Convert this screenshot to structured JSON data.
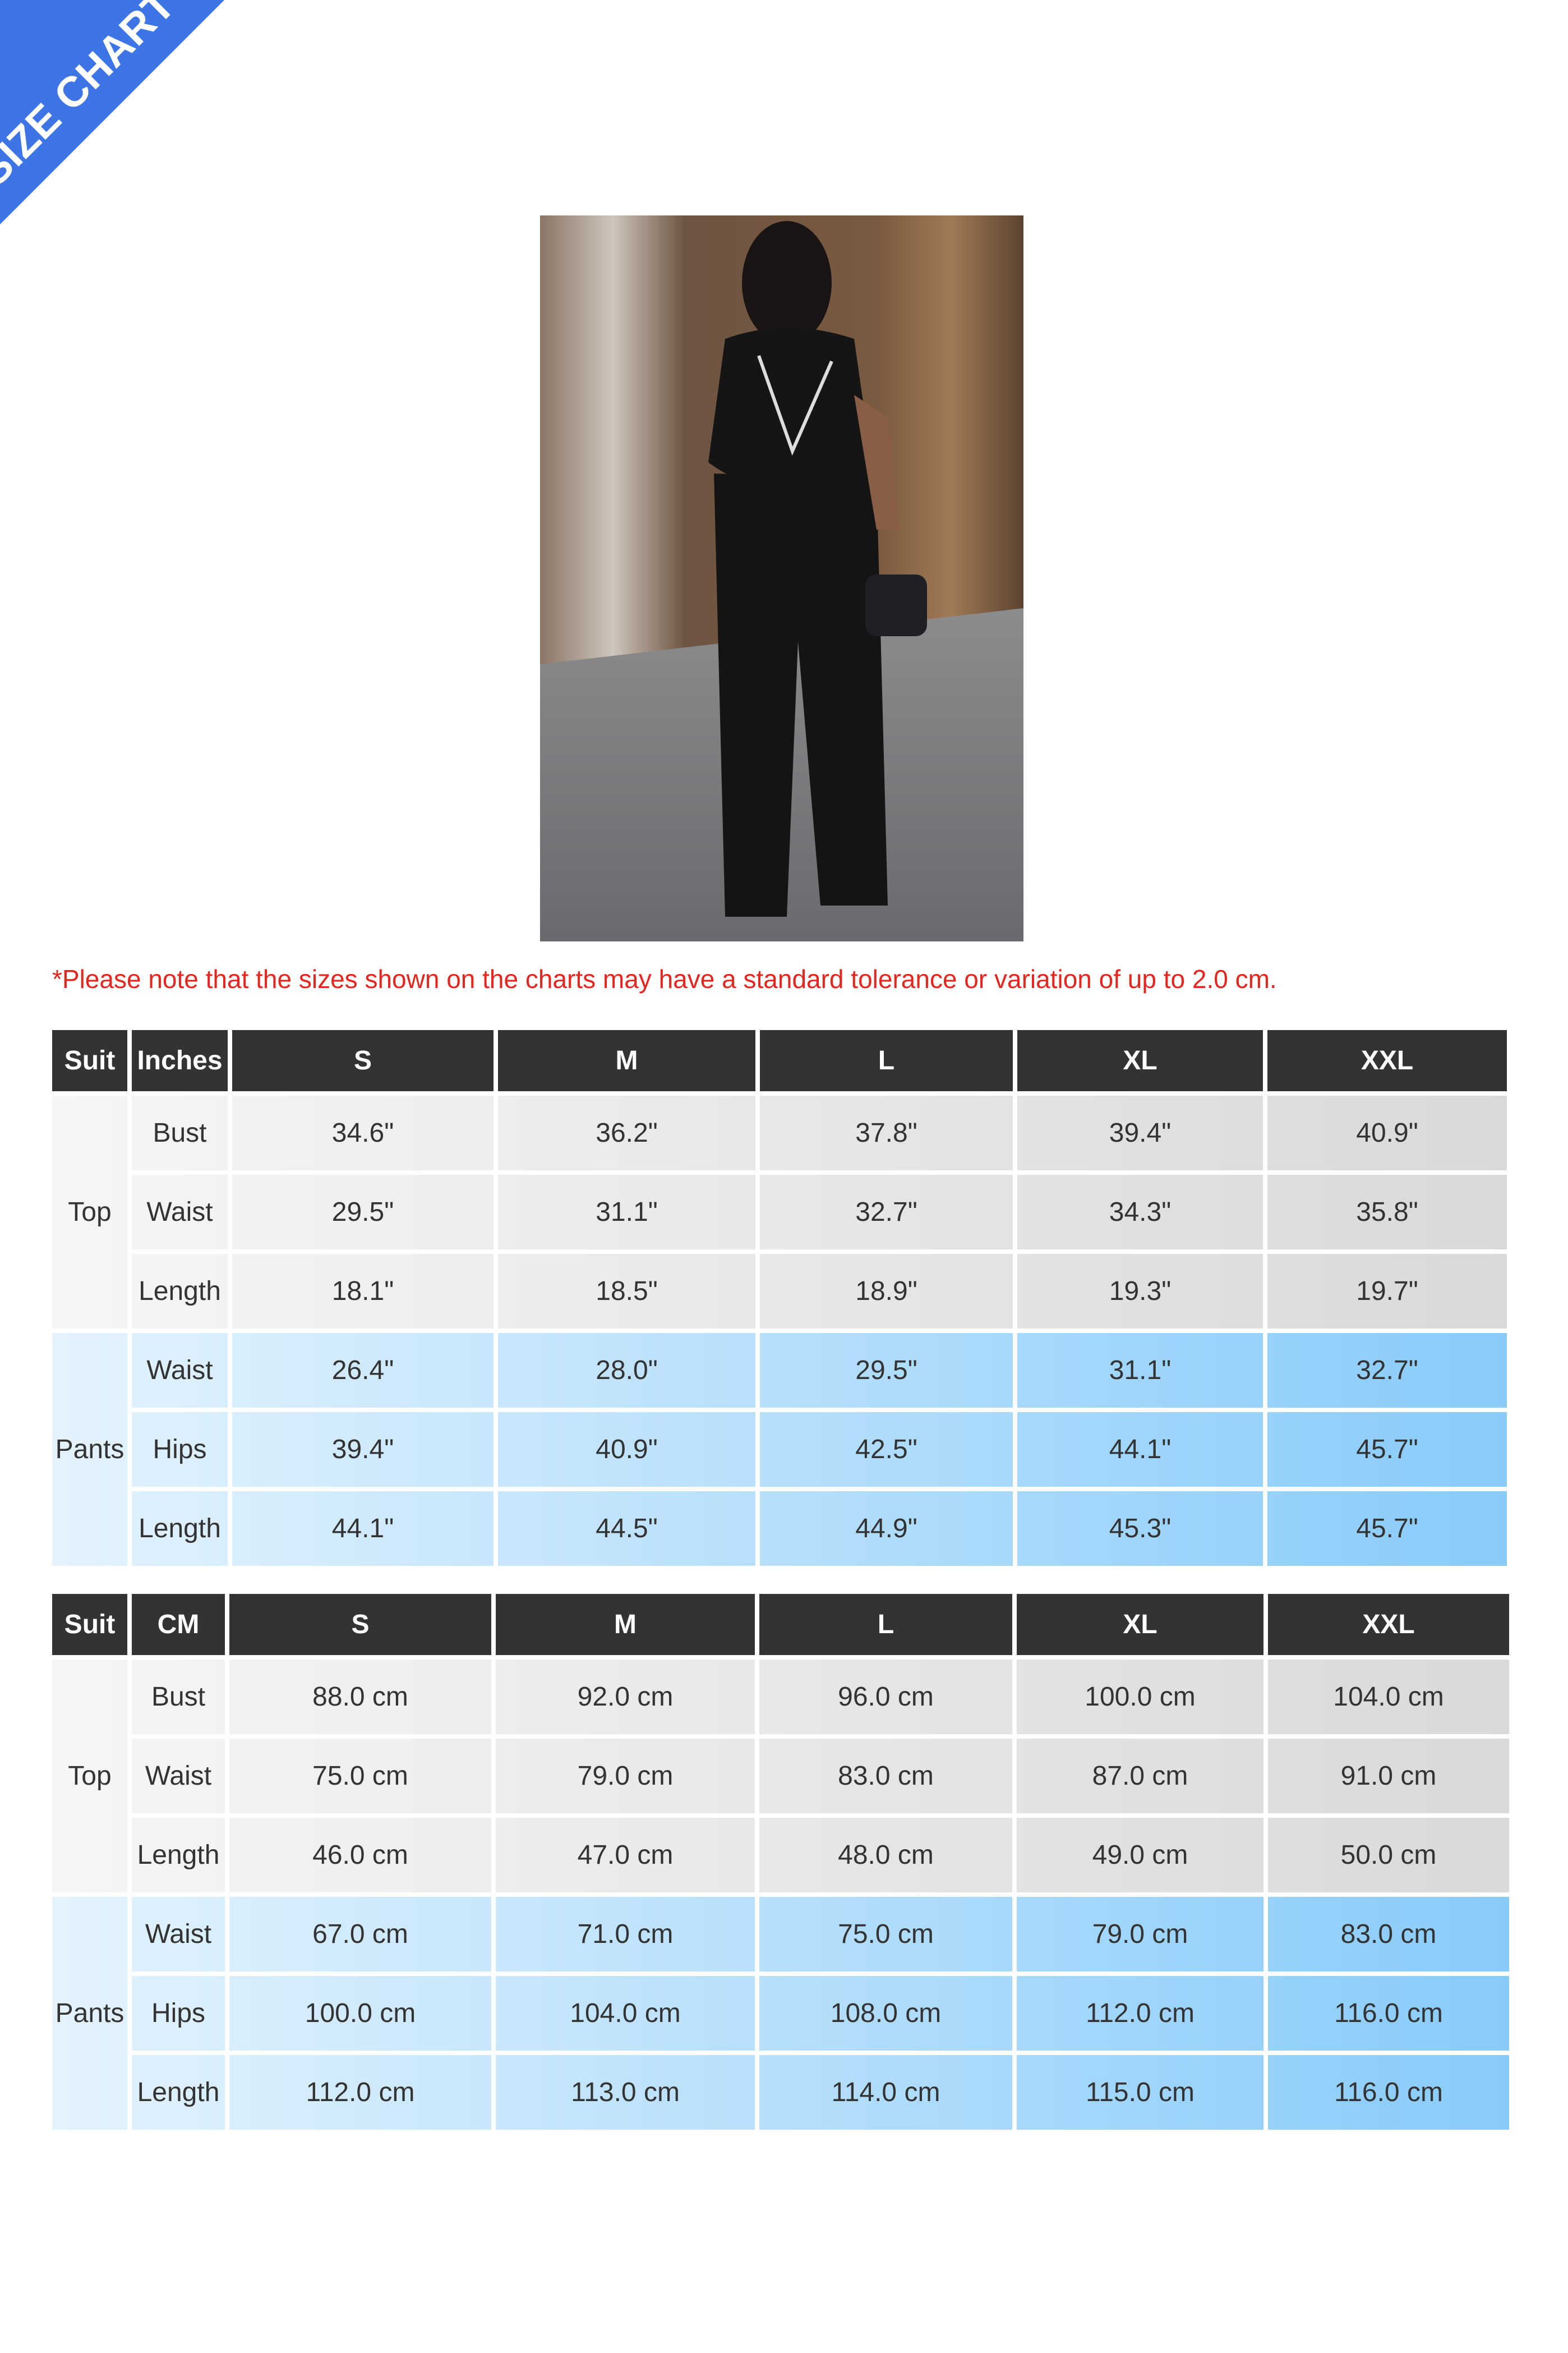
{
  "banner": {
    "text": "SIZE CHART",
    "color": "#3d74e6"
  },
  "note": "*Please note that the sizes shown on the charts may have a standard tolerance or variation of up to 2.0 cm.",
  "colors": {
    "header": "#333333",
    "note": "#e5261f",
    "top_rows": "#e6e6e6",
    "pants_rows": "#a8dbfb"
  },
  "tables": [
    {
      "headers": [
        "Suit",
        "Inches",
        "S",
        "M",
        "L",
        "XL",
        "XXL"
      ],
      "groups": [
        {
          "name": "Top",
          "rows": [
            {
              "label": "Bust",
              "values": [
                "34.6\"",
                "36.2\"",
                "37.8\"",
                "39.4\"",
                "40.9\""
              ]
            },
            {
              "label": "Waist",
              "values": [
                "29.5\"",
                "31.1\"",
                "32.7\"",
                "34.3\"",
                "35.8\""
              ]
            },
            {
              "label": "Length",
              "values": [
                "18.1\"",
                "18.5\"",
                "18.9\"",
                "19.3\"",
                "19.7\""
              ]
            }
          ]
        },
        {
          "name": "Pants",
          "rows": [
            {
              "label": "Waist",
              "values": [
                "26.4\"",
                "28.0\"",
                "29.5\"",
                "31.1\"",
                "32.7\""
              ]
            },
            {
              "label": "Hips",
              "values": [
                "39.4\"",
                "40.9\"",
                "42.5\"",
                "44.1\"",
                "45.7\""
              ]
            },
            {
              "label": "Length",
              "values": [
                "44.1\"",
                "44.5\"",
                "44.9\"",
                "45.3\"",
                "45.7\""
              ]
            }
          ]
        }
      ]
    },
    {
      "headers": [
        "Suit",
        "CM",
        "S",
        "M",
        "L",
        "XL",
        "XXL"
      ],
      "groups": [
        {
          "name": "Top",
          "rows": [
            {
              "label": "Bust",
              "values": [
                "88.0 cm",
                "92.0 cm",
                "96.0 cm",
                "100.0 cm",
                "104.0 cm"
              ]
            },
            {
              "label": "Waist",
              "values": [
                "75.0 cm",
                "79.0 cm",
                "83.0 cm",
                "87.0 cm",
                "91.0 cm"
              ]
            },
            {
              "label": "Length",
              "values": [
                "46.0 cm",
                "47.0 cm",
                "48.0 cm",
                "49.0 cm",
                "50.0 cm"
              ]
            }
          ]
        },
        {
          "name": "Pants",
          "rows": [
            {
              "label": "Waist",
              "values": [
                "67.0 cm",
                "71.0 cm",
                "75.0 cm",
                "79.0 cm",
                "83.0 cm"
              ]
            },
            {
              "label": "Hips",
              "values": [
                "100.0 cm",
                "104.0 cm",
                "108.0 cm",
                "112.0 cm",
                "116.0 cm"
              ]
            },
            {
              "label": "Length",
              "values": [
                "112.0 cm",
                "113.0 cm",
                "114.0 cm",
                "115.0 cm",
                "116.0 cm"
              ]
            }
          ]
        }
      ]
    }
  ]
}
